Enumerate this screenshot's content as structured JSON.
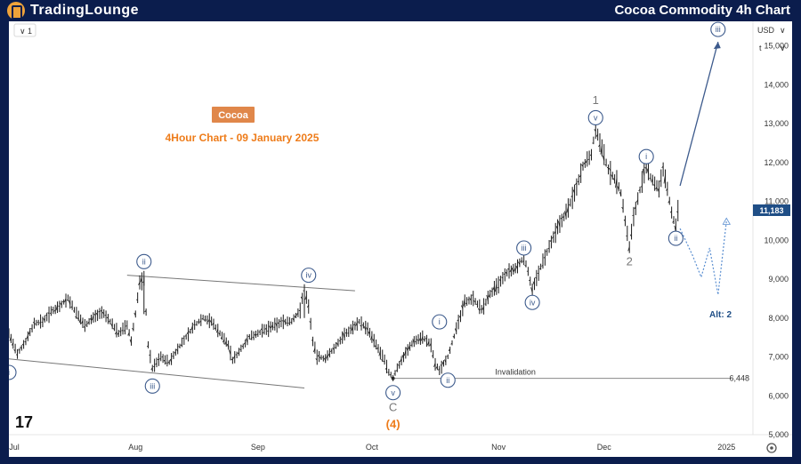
{
  "header": {
    "logo_text": "TradingLounge",
    "title": "Cocoa Commodity 4h Chart"
  },
  "toolbar": {
    "interval_label": "1",
    "currency": "USD",
    "scale_mode": "t"
  },
  "annotations": {
    "badge": "Cocoa",
    "subtitle": "4Hour Chart - 09 January 2025",
    "invalidation_label": "Invalidation",
    "invalidation_value": "6,448",
    "last_price": "11,183",
    "alt_label": "Alt: 2",
    "tv_logo": "17"
  },
  "colors": {
    "wave": "#3c5a8c",
    "orange": "#ee7c1a",
    "badge_bg": "#e0874a",
    "gray_label": "#888888",
    "price_badge": "#1f4e86"
  },
  "chart_data": {
    "type": "line",
    "y_ticks": [
      "5,000",
      "6,000",
      "7,000",
      "8,000",
      "9,000",
      "10,000",
      "11,000",
      "12,000",
      "13,000",
      "14,000",
      "15,000"
    ],
    "x_ticks": [
      "Jul",
      "Aug",
      "Sep",
      "Oct",
      "Nov",
      "Dec",
      "2025"
    ],
    "ylim": [
      5000,
      15400
    ],
    "series": [
      {
        "values": [
          [
            0,
            7600
          ],
          [
            2,
            7050
          ],
          [
            4,
            7400
          ],
          [
            6,
            7850
          ],
          [
            8,
            7900
          ],
          [
            10,
            8150
          ],
          [
            12,
            8300
          ],
          [
            14,
            8500
          ],
          [
            16,
            8100
          ],
          [
            18,
            7800
          ],
          [
            20,
            8000
          ],
          [
            22,
            8150
          ],
          [
            24,
            7900
          ],
          [
            26,
            7600
          ],
          [
            28,
            7800
          ],
          [
            29,
            7400
          ],
          [
            30,
            8100
          ],
          [
            31,
            8900
          ],
          [
            32,
            9000
          ],
          [
            33,
            7300
          ],
          [
            34,
            6700
          ],
          [
            36,
            7000
          ],
          [
            38,
            6850
          ],
          [
            40,
            7200
          ],
          [
            42,
            7500
          ],
          [
            44,
            7800
          ],
          [
            46,
            8000
          ],
          [
            48,
            7900
          ],
          [
            50,
            7600
          ],
          [
            52,
            7300
          ],
          [
            53,
            6900
          ],
          [
            55,
            7200
          ],
          [
            57,
            7500
          ],
          [
            59,
            7600
          ],
          [
            61,
            7700
          ],
          [
            63,
            7800
          ],
          [
            65,
            7900
          ],
          [
            67,
            7900
          ],
          [
            69,
            8200
          ],
          [
            70,
            8750
          ],
          [
            71,
            8300
          ],
          [
            72,
            7400
          ],
          [
            73,
            7000
          ],
          [
            75,
            6950
          ],
          [
            77,
            7200
          ],
          [
            79,
            7500
          ],
          [
            81,
            7700
          ],
          [
            83,
            7900
          ],
          [
            85,
            7700
          ],
          [
            87,
            7300
          ],
          [
            89,
            6900
          ],
          [
            90,
            6600
          ],
          [
            91,
            6450
          ],
          [
            92,
            6700
          ],
          [
            94,
            7100
          ],
          [
            96,
            7400
          ],
          [
            98,
            7500
          ],
          [
            100,
            7300
          ],
          [
            101,
            6800
          ],
          [
            102,
            6650
          ],
          [
            104,
            7000
          ],
          [
            106,
            7700
          ],
          [
            108,
            8400
          ],
          [
            110,
            8500
          ],
          [
            112,
            8200
          ],
          [
            114,
            8600
          ],
          [
            116,
            8850
          ],
          [
            118,
            9150
          ],
          [
            120,
            9250
          ],
          [
            122,
            9550
          ],
          [
            123,
            9200
          ],
          [
            124,
            8700
          ],
          [
            126,
            9300
          ],
          [
            128,
            9800
          ],
          [
            130,
            10300
          ],
          [
            132,
            10700
          ],
          [
            134,
            11200
          ],
          [
            136,
            11900
          ],
          [
            138,
            12200
          ],
          [
            139,
            12900
          ],
          [
            140,
            12500
          ],
          [
            142,
            11800
          ],
          [
            144,
            11500
          ],
          [
            145,
            11200
          ],
          [
            146,
            10500
          ],
          [
            147,
            9800
          ],
          [
            148,
            10600
          ],
          [
            150,
            11500
          ],
          [
            151,
            11900
          ],
          [
            152,
            11600
          ],
          [
            154,
            11300
          ],
          [
            155,
            11800
          ],
          [
            156,
            11300
          ],
          [
            157,
            10700
          ],
          [
            158,
            10300
          ],
          [
            159,
            11200
          ]
        ]
      }
    ],
    "wave_labels": [
      {
        "text": "i",
        "x": 0,
        "y": 6600,
        "circled": true
      },
      {
        "text": "ii",
        "x": 32,
        "y": 9450,
        "circled": true
      },
      {
        "text": "iii",
        "x": 34,
        "y": 6250,
        "circled": true
      },
      {
        "text": "iv",
        "x": 71,
        "y": 9100,
        "circled": true
      },
      {
        "text": "v",
        "x": 91,
        "y": 6080,
        "circled": true
      },
      {
        "text": "C",
        "x": 91,
        "y": 5700,
        "circled": false
      },
      {
        "text": "(4)",
        "x": 91,
        "y": 5260,
        "circled": false
      },
      {
        "text": "i",
        "x": 102,
        "y": 7900,
        "circled": true
      },
      {
        "text": "ii",
        "x": 104,
        "y": 6400,
        "circled": true
      },
      {
        "text": "iii",
        "x": 122,
        "y": 9800,
        "circled": true
      },
      {
        "text": "iv",
        "x": 124,
        "y": 8400,
        "circled": true
      },
      {
        "text": "1",
        "x": 139,
        "y": 13600,
        "circled": false
      },
      {
        "text": "v",
        "x": 139,
        "y": 13150,
        "circled": true
      },
      {
        "text": "i",
        "x": 151,
        "y": 12150,
        "circled": true
      },
      {
        "text": "2",
        "x": 147,
        "y": 9450,
        "circled": false
      },
      {
        "text": "ii",
        "x": 158,
        "y": 10050,
        "circled": true
      },
      {
        "text": "iii",
        "x": 168,
        "y": 15420,
        "circled": true
      }
    ],
    "trendlines": [
      {
        "from": [
          0,
          6950
        ],
        "to": [
          70,
          6200
        ]
      },
      {
        "from": [
          28,
          9100
        ],
        "to": [
          82,
          8700
        ]
      }
    ],
    "invalidation_level": 6448,
    "projection": [
      [
        159,
        11400
      ],
      [
        168,
        15100
      ]
    ],
    "alt_projection": [
      [
        159,
        10300
      ],
      [
        162,
        9600
      ],
      [
        164,
        9050
      ],
      [
        166,
        9800
      ],
      [
        168,
        8600
      ],
      [
        170,
        10500
      ]
    ],
    "x_range": [
      0,
      175
    ]
  }
}
